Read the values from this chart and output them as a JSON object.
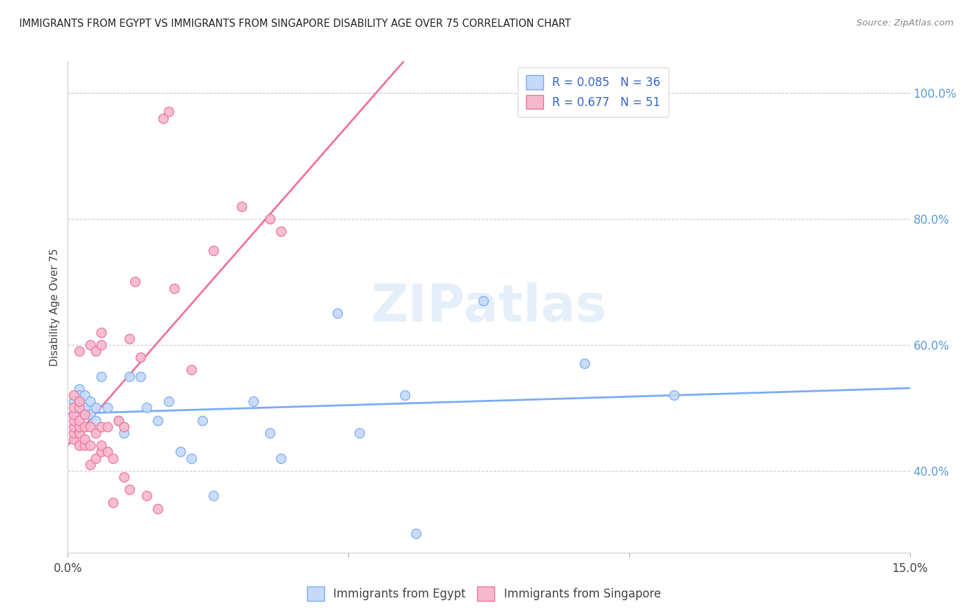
{
  "title": "IMMIGRANTS FROM EGYPT VS IMMIGRANTS FROM SINGAPORE DISABILITY AGE OVER 75 CORRELATION CHART",
  "source": "Source: ZipAtlas.com",
  "ylabel": "Disability Age Over 75",
  "xlim": [
    0.0,
    0.15
  ],
  "ylim": [
    0.27,
    1.05
  ],
  "yticks_right": [
    0.4,
    0.6,
    0.8,
    1.0
  ],
  "ytick_labels_right": [
    "40.0%",
    "60.0%",
    "80.0%",
    "100.0%"
  ],
  "egypt_color": "#7aabf5",
  "egypt_fill": "#c5d9f8",
  "singapore_color": "#f0719a",
  "singapore_fill": "#f5b8cc",
  "egypt_R": 0.085,
  "egypt_N": 36,
  "singapore_R": 0.677,
  "singapore_N": 51,
  "legend_label_egypt": "Immigrants from Egypt",
  "legend_label_singapore": "Immigrants from Singapore",
  "watermark": "ZIPatlas",
  "egypt_x": [
    0.001,
    0.001,
    0.002,
    0.002,
    0.002,
    0.002,
    0.003,
    0.003,
    0.003,
    0.004,
    0.004,
    0.005,
    0.005,
    0.006,
    0.007,
    0.009,
    0.01,
    0.011,
    0.013,
    0.014,
    0.016,
    0.018,
    0.02,
    0.022,
    0.024,
    0.026,
    0.033,
    0.036,
    0.038,
    0.048,
    0.052,
    0.06,
    0.062,
    0.074,
    0.092,
    0.108
  ],
  "egypt_y": [
    0.49,
    0.51,
    0.5,
    0.53,
    0.52,
    0.5,
    0.49,
    0.5,
    0.52,
    0.49,
    0.51,
    0.5,
    0.48,
    0.55,
    0.5,
    0.48,
    0.46,
    0.55,
    0.55,
    0.5,
    0.48,
    0.51,
    0.43,
    0.42,
    0.48,
    0.36,
    0.51,
    0.46,
    0.42,
    0.65,
    0.46,
    0.52,
    0.3,
    0.67,
    0.57,
    0.52
  ],
  "singapore_x": [
    0.001,
    0.001,
    0.001,
    0.001,
    0.001,
    0.001,
    0.001,
    0.002,
    0.002,
    0.002,
    0.002,
    0.002,
    0.002,
    0.002,
    0.003,
    0.003,
    0.003,
    0.003,
    0.004,
    0.004,
    0.004,
    0.004,
    0.005,
    0.005,
    0.005,
    0.006,
    0.006,
    0.006,
    0.006,
    0.006,
    0.007,
    0.007,
    0.008,
    0.008,
    0.009,
    0.01,
    0.01,
    0.011,
    0.011,
    0.012,
    0.013,
    0.014,
    0.016,
    0.017,
    0.018,
    0.019,
    0.022,
    0.026,
    0.031,
    0.036,
    0.038
  ],
  "singapore_y": [
    0.45,
    0.46,
    0.47,
    0.48,
    0.49,
    0.5,
    0.52,
    0.44,
    0.46,
    0.47,
    0.48,
    0.5,
    0.51,
    0.59,
    0.44,
    0.45,
    0.47,
    0.49,
    0.41,
    0.44,
    0.47,
    0.6,
    0.42,
    0.46,
    0.59,
    0.43,
    0.44,
    0.47,
    0.6,
    0.62,
    0.43,
    0.47,
    0.42,
    0.35,
    0.48,
    0.39,
    0.47,
    0.37,
    0.61,
    0.7,
    0.58,
    0.36,
    0.34,
    0.96,
    0.97,
    0.69,
    0.56,
    0.75,
    0.82,
    0.8,
    0.78
  ]
}
